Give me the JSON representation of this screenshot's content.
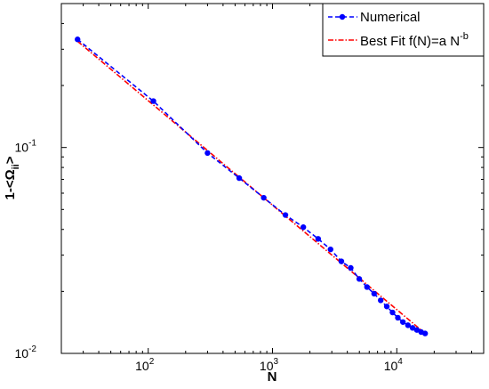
{
  "chart_data": {
    "type": "line",
    "x_scale": "log",
    "y_scale": "log",
    "xlim": [
      20,
      50000
    ],
    "ylim": [
      0.01,
      0.5
    ],
    "xlabel": "N",
    "ylabel": "1-<Ω_ii>",
    "grid": false,
    "legend_position": "top-right",
    "x_ticks": [
      {
        "value": 100,
        "base": "10",
        "exp": "2"
      },
      {
        "value": 1000,
        "base": "10",
        "exp": "3"
      },
      {
        "value": 10000,
        "base": "10",
        "exp": "4"
      }
    ],
    "y_ticks": [
      {
        "value": 0.01,
        "base": "10",
        "exp": "-2"
      },
      {
        "value": 0.1,
        "base": "10",
        "exp": "-1"
      }
    ],
    "series": [
      {
        "name": "Numerical",
        "color": "#0000ff",
        "line_style": "dashed",
        "marker": "circle",
        "x": [
          27,
          110,
          300,
          540,
          850,
          1270,
          1770,
          2330,
          2930,
          3580,
          4260,
          4990,
          5760,
          6570,
          7420,
          8310,
          9240,
          10200,
          11200,
          12300,
          13400,
          14500,
          15700,
          16900
        ],
        "y": [
          0.335,
          0.168,
          0.094,
          0.071,
          0.057,
          0.047,
          0.041,
          0.036,
          0.032,
          0.028,
          0.026,
          0.023,
          0.021,
          0.0195,
          0.0181,
          0.0169,
          0.0158,
          0.0149,
          0.0142,
          0.0137,
          0.0133,
          0.013,
          0.0127,
          0.0125
        ]
      },
      {
        "name": "Best Fit f(N)=a N",
        "name_superscript": "-b",
        "color": "#ff0000",
        "line_style": "dashdot",
        "marker": "none",
        "x": [
          27,
          16900
        ],
        "y": [
          0.328,
          0.0125
        ]
      }
    ]
  }
}
